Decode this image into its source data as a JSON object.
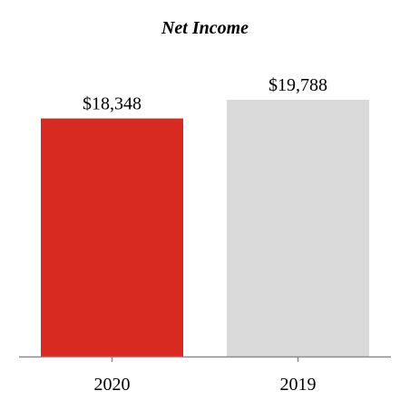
{
  "chart_data": {
    "type": "bar",
    "title": "Net Income",
    "categories": [
      "2020",
      "2019"
    ],
    "values": [
      18348,
      19788
    ],
    "value_labels": [
      "$18,348",
      "$19,788"
    ],
    "ylim": [
      0,
      22000
    ],
    "grid": false,
    "legend": "none",
    "xlabel": "",
    "ylabel": ""
  },
  "colors": {
    "bars": [
      "#d82a20",
      "#d9dad9"
    ],
    "axis": "#8a8a8a"
  }
}
